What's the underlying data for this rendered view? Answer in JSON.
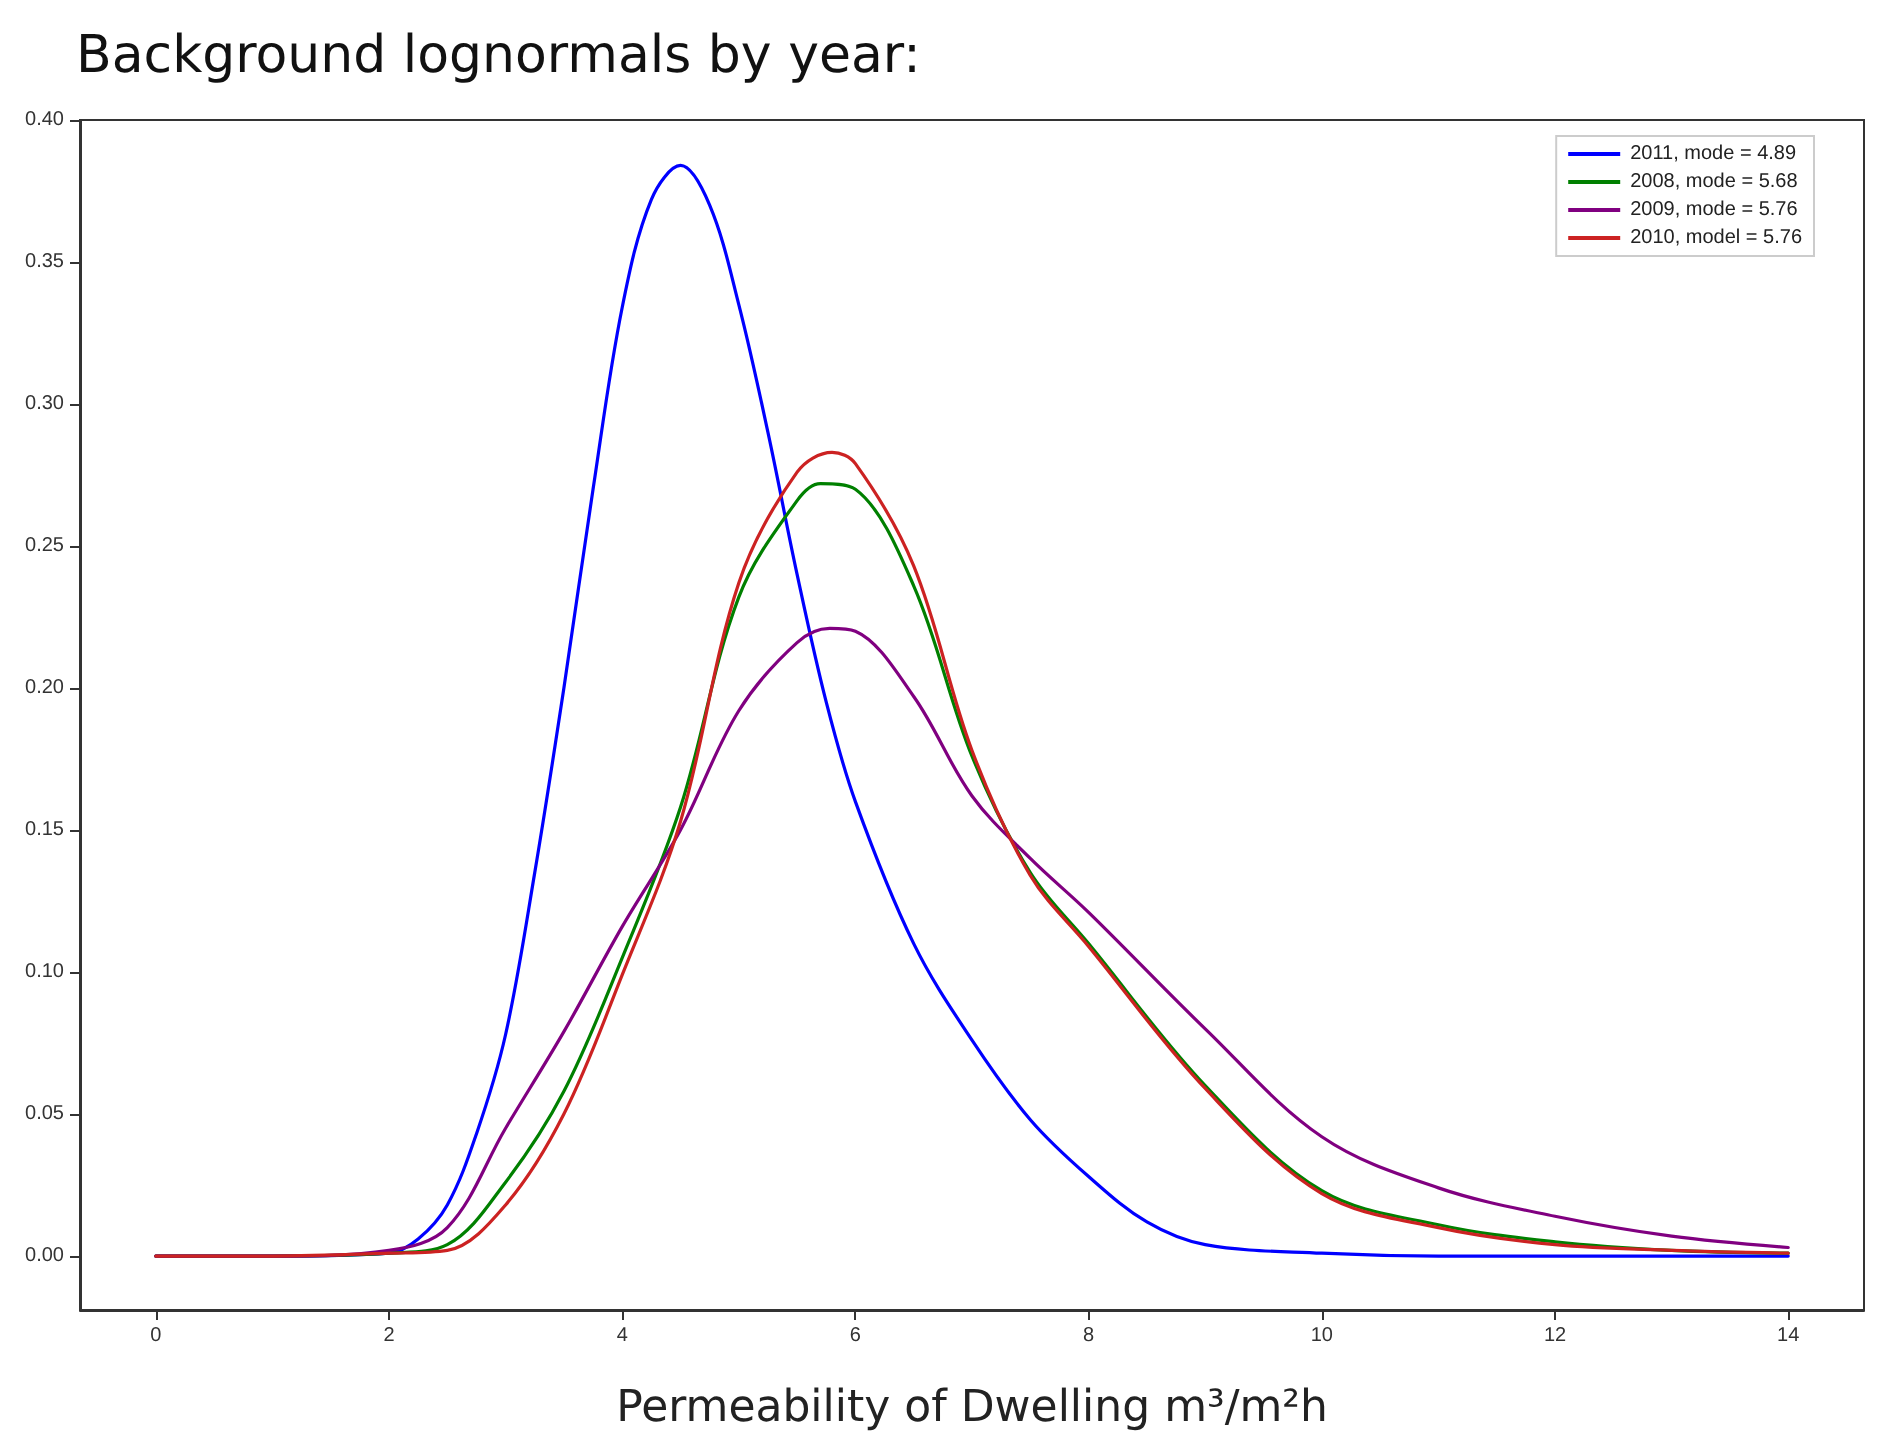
{
  "chart_data": {
    "type": "line",
    "title": "Background lognormals by year:",
    "xlabel": "Permeability of Dwelling m³/m²h",
    "xlim": [
      -0.65,
      14.65
    ],
    "xticks": [
      0,
      2,
      4,
      6,
      8,
      10,
      12,
      14
    ],
    "ylim": [
      -0.019,
      0.4
    ],
    "yticks": [
      {
        "value": 0,
        "label": "0.00"
      },
      {
        "value": 0.05,
        "label": "0.05"
      },
      {
        "value": 0.1,
        "label": "0.10"
      },
      {
        "value": 0.15,
        "label": "0.15"
      },
      {
        "value": 0.2,
        "label": "0.20"
      },
      {
        "value": 0.25,
        "label": "0.25"
      },
      {
        "value": 0.3,
        "label": "0.30"
      },
      {
        "value": 0.35,
        "label": "0.35"
      },
      {
        "value": 0.4,
        "label": "0.40"
      }
    ],
    "grid": false,
    "legend": "top right",
    "marker": "none",
    "line_style": "solid",
    "series": [
      {
        "name": "2011, mode = 4.89",
        "color": "#0000ff",
        "x": [
          0,
          1,
          2,
          2.25,
          2.5,
          2.75,
          3,
          3.25,
          3.5,
          3.75,
          4,
          4.25,
          4.5,
          4.75,
          5,
          5.25,
          5.5,
          5.75,
          6,
          6.5,
          7,
          7.5,
          8,
          8.5,
          9,
          10,
          11,
          12,
          13,
          14
        ],
        "values": [
          0,
          0,
          0.001,
          0.006,
          0.018,
          0.043,
          0.078,
          0.135,
          0.2,
          0.27,
          0.334,
          0.372,
          0.384,
          0.37,
          0.335,
          0.29,
          0.24,
          0.195,
          0.16,
          0.11,
          0.076,
          0.048,
          0.028,
          0.012,
          0.004,
          0.001,
          0,
          0,
          0,
          0
        ]
      },
      {
        "name": "2008, mode = 5.68",
        "color": "#008000",
        "x": [
          0,
          1,
          2,
          2.5,
          3,
          3.5,
          4,
          4.5,
          5,
          5.5,
          5.7,
          6,
          6.5,
          7,
          7.5,
          8,
          9,
          10,
          11,
          12,
          13,
          14
        ],
        "values": [
          0,
          0,
          0.001,
          0.004,
          0.026,
          0.058,
          0.105,
          0.158,
          0.232,
          0.266,
          0.272,
          0.27,
          0.236,
          0.176,
          0.135,
          0.11,
          0.06,
          0.023,
          0.011,
          0.005,
          0.002,
          0.001
        ]
      },
      {
        "name": "2009, mode = 5.76",
        "color": "#800080",
        "x": [
          0,
          1,
          2,
          2.5,
          3,
          3.5,
          4,
          4.5,
          5,
          5.5,
          5.78,
          6,
          6.5,
          7,
          7.5,
          8,
          9,
          10,
          11,
          12,
          13,
          14
        ],
        "values": [
          0,
          0,
          0.002,
          0.01,
          0.045,
          0.079,
          0.116,
          0.15,
          0.192,
          0.216,
          0.221,
          0.22,
          0.197,
          0.162,
          0.14,
          0.121,
          0.08,
          0.042,
          0.024,
          0.014,
          0.007,
          0.003
        ]
      },
      {
        "name": "2010, model = 5.76",
        "color": "#cc2222",
        "x": [
          0,
          1,
          2,
          2.5,
          3,
          3.5,
          4,
          4.5,
          5,
          5.5,
          5.8,
          6,
          6.5,
          7,
          7.5,
          8,
          9,
          10,
          11,
          12,
          13,
          14
        ],
        "values": [
          0,
          0,
          0.001,
          0.002,
          0.018,
          0.05,
          0.099,
          0.153,
          0.237,
          0.276,
          0.283,
          0.279,
          0.243,
          0.178,
          0.134,
          0.109,
          0.059,
          0.022,
          0.01,
          0.004,
          0.002,
          0.001
        ]
      }
    ]
  }
}
